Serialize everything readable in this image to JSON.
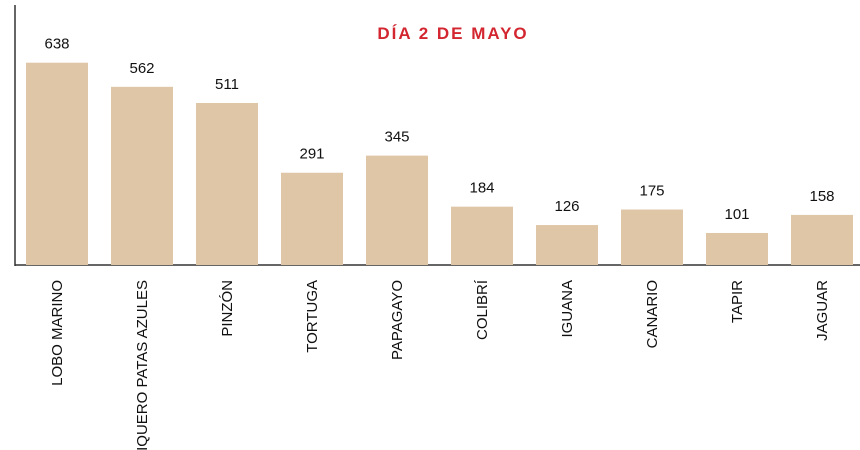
{
  "chart_data": {
    "type": "bar",
    "title": "DÍA 2 DE MAYO",
    "categories": [
      "LOBO MARINO",
      "PIQUERO PATAS AZULES",
      "PINZÓN",
      "TORTUGA",
      "PAPAGAYO",
      "COLIBRÍ",
      "IGUANA",
      "CANARIO",
      "TAPIR",
      "JAGUAR"
    ],
    "values": [
      638,
      562,
      511,
      291,
      345,
      184,
      126,
      175,
      101,
      158
    ],
    "color": "#dfc6a7",
    "ylim": [
      0,
      820
    ]
  }
}
